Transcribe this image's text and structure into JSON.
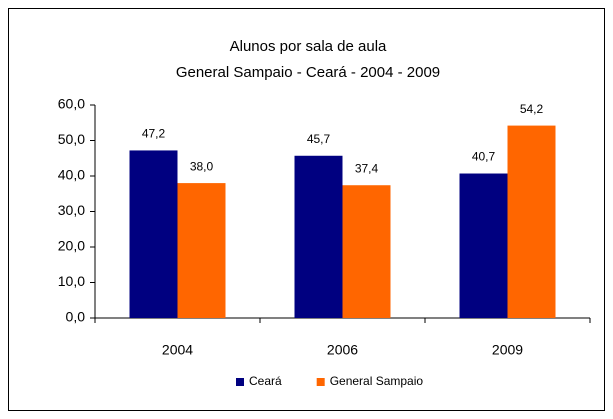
{
  "chart_data": {
    "type": "bar",
    "title": "Alunos por sala de aula",
    "subtitle": "General Sampaio - Ceará - 2004 - 2009",
    "categories": [
      "2004",
      "2006",
      "2009"
    ],
    "series": [
      {
        "name": "Ceará",
        "color": "#000080",
        "values": [
          47.2,
          45.7,
          40.7
        ],
        "value_labels": [
          "47,2",
          "45,7",
          "40,7"
        ]
      },
      {
        "name": "General Sampaio",
        "color": "#ff6600",
        "values": [
          38.0,
          37.4,
          54.2
        ],
        "value_labels": [
          "38,0",
          "37,4",
          "54,2"
        ]
      }
    ],
    "ylim": [
      0,
      60
    ],
    "yticks": [
      {
        "value": 0,
        "label": "0,0"
      },
      {
        "value": 10,
        "label": "10,0"
      },
      {
        "value": 20,
        "label": "20,0"
      },
      {
        "value": 30,
        "label": "30,0"
      },
      {
        "value": 40,
        "label": "40,0"
      },
      {
        "value": 50,
        "label": "50,0"
      },
      {
        "value": 60,
        "label": "60,0"
      }
    ],
    "grid": false,
    "legend": "bottom"
  }
}
